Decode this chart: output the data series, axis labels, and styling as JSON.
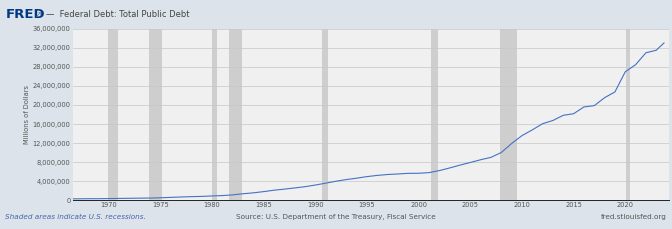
{
  "title": "Federal Debt: Total Public Debt",
  "ylabel": "Millions of Dollars",
  "line_color": "#4472c4",
  "line_width": 0.8,
  "bg_color": "#dce3ea",
  "plot_bg_color": "#f0f0f0",
  "recession_color": "#c8c8c8",
  "recession_alpha": 0.85,
  "ylim": [
    0,
    36000000
  ],
  "yticks": [
    0,
    4000000,
    8000000,
    12000000,
    16000000,
    20000000,
    24000000,
    28000000,
    32000000,
    36000000
  ],
  "ytick_labels": [
    "0",
    "4,000,000",
    "8,000,000",
    "12,000,000",
    "16,000,000",
    "20,000,000",
    "24,000,000",
    "28,000,000",
    "32,000,000",
    "36,000,000"
  ],
  "xlim_start": 1966.5,
  "xlim_end": 2024.2,
  "xticks": [
    1970,
    1975,
    1980,
    1985,
    1990,
    1995,
    2000,
    2005,
    2010,
    2015,
    2020
  ],
  "footer_left": "Shaded areas indicate U.S. recessions.",
  "footer_center": "Source: U.S. Department of the Treasury, Fiscal Service",
  "footer_right": "fred.stlouisfed.org",
  "fred_logo_color": "#003882",
  "recession_bands": [
    [
      1969.9,
      1970.9
    ],
    [
      1973.9,
      1975.2
    ],
    [
      1980.0,
      1980.5
    ],
    [
      1981.6,
      1982.9
    ],
    [
      1990.6,
      1991.2
    ],
    [
      2001.2,
      2001.9
    ],
    [
      2007.9,
      2009.5
    ],
    [
      2020.1,
      2020.5
    ]
  ],
  "data_years": [
    1966,
    1967,
    1968,
    1969,
    1970,
    1971,
    1972,
    1973,
    1974,
    1975,
    1976,
    1977,
    1978,
    1979,
    1980,
    1981,
    1982,
    1983,
    1984,
    1985,
    1986,
    1987,
    1988,
    1989,
    1990,
    1991,
    1992,
    1993,
    1994,
    1995,
    1996,
    1997,
    1998,
    1999,
    2000,
    2001,
    2002,
    2003,
    2004,
    2005,
    2006,
    2007,
    2008,
    2009,
    2010,
    2011,
    2012,
    2013,
    2014,
    2015,
    2016,
    2017,
    2018,
    2019,
    2020,
    2021,
    2022,
    2023,
    2023.75
  ],
  "data_values": [
    319000,
    326000,
    347000,
    353000,
    380000,
    408000,
    437000,
    468000,
    485000,
    543000,
    630000,
    709000,
    781000,
    836000,
    930000,
    1004000,
    1152000,
    1387000,
    1582000,
    1833000,
    2130000,
    2355000,
    2610000,
    2867000,
    3216000,
    3608000,
    4011000,
    4361000,
    4653000,
    4983000,
    5234000,
    5423000,
    5536000,
    5666000,
    5684000,
    5817000,
    6238000,
    6793000,
    7389000,
    7942000,
    8516000,
    9017000,
    10034000,
    11919000,
    13571000,
    14774000,
    16076000,
    16748000,
    17834000,
    18161000,
    19583000,
    19856000,
    21526000,
    22729000,
    26955000,
    28438000,
    30938000,
    31469000,
    33000000
  ]
}
